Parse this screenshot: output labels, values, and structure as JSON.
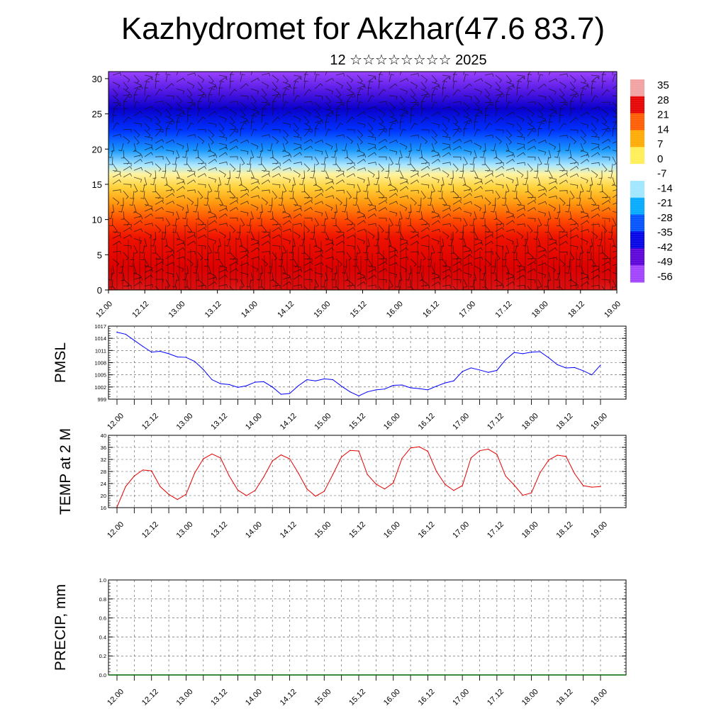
{
  "title": "Kazhydromet for Akzhar(47.6 83.7)",
  "subtitle": "12 ☆☆☆☆☆☆☆☆ 2025",
  "chart_data": [
    {
      "type": "heatmap",
      "panel": "wind-temperature-cross-section",
      "ylim": [
        0,
        31
      ],
      "y_ticks": [
        "0",
        "5",
        "10",
        "15",
        "20",
        "25",
        "30"
      ],
      "x_ticks": [
        "12.00",
        "12.12",
        "13.00",
        "13.12",
        "14.00",
        "14.12",
        "15.00",
        "15.12",
        "16.00",
        "16.12",
        "17.00",
        "17.12",
        "18.00",
        "18.12",
        "19.00"
      ],
      "colorbar_labels": [
        "35",
        "28",
        "21",
        "14",
        "7",
        "0",
        "-7",
        "-14",
        "-21",
        "-28",
        "-35",
        "-42",
        "-49",
        "-56"
      ],
      "colorbar_colors": [
        "#f2a0a0",
        "#e60000",
        "#ff5a00",
        "#ffaa00",
        "#ffee55",
        "#ffffff",
        "#9fe6ff",
        "#00aaff",
        "#0050ff",
        "#0000e6",
        "#5a00d8",
        "#a040ff"
      ],
      "grid": false
    },
    {
      "type": "line",
      "ylabel": "PMSL",
      "ylim": [
        999,
        1017
      ],
      "y_ticks": [
        "999",
        "1002",
        "1005",
        "1008",
        "1011",
        "1014",
        "1017"
      ],
      "x_ticks": [
        "12.00",
        "12.12",
        "13.00",
        "13.12",
        "14.00",
        "14.12",
        "15.00",
        "15.12",
        "16.00",
        "16.12",
        "17.00",
        "17.12",
        "18.00",
        "18.12",
        "19.00"
      ],
      "color": "#0000ff",
      "grid": true,
      "values": [
        1015.5,
        1015.0,
        1013.5,
        1012.0,
        1010.6,
        1010.8,
        1010.2,
        1009.4,
        1009.3,
        1008.3,
        1006.3,
        1003.8,
        1002.8,
        1002.6,
        1001.9,
        1002.3,
        1003.2,
        1003.3,
        1002.0,
        1000.2,
        1000.4,
        1002.3,
        1003.8,
        1003.5,
        1004.0,
        1003.8,
        1002.2,
        1000.8,
        999.8,
        1000.8,
        1001.3,
        1001.5,
        1002.4,
        1002.5,
        1001.8,
        1001.6,
        1001.3,
        1002.2,
        1003.0,
        1003.5,
        1005.8,
        1006.7,
        1006.2,
        1005.6,
        1006.1,
        1008.7,
        1010.5,
        1010.2,
        1010.6,
        1010.7,
        1009.2,
        1007.5,
        1006.7,
        1006.8,
        1006.0,
        1005.0,
        1007.4
      ]
    },
    {
      "type": "line",
      "ylabel": "TEMP at 2 M",
      "ylim": [
        16,
        40
      ],
      "y_ticks": [
        "16",
        "20",
        "24",
        "28",
        "32",
        "36",
        "40"
      ],
      "x_ticks": [
        "12.00",
        "12.12",
        "13.00",
        "13.12",
        "14.00",
        "14.12",
        "15.00",
        "15.12",
        "16.00",
        "16.12",
        "17.00",
        "17.12",
        "18.00",
        "18.12",
        "19.00"
      ],
      "color": "#e60000",
      "grid": true,
      "values": [
        16.2,
        23.0,
        26.5,
        28.5,
        28.2,
        23.0,
        20.4,
        18.7,
        20.4,
        27.5,
        32.2,
        33.8,
        32.5,
        26.5,
        21.8,
        20.0,
        21.7,
        26.2,
        31.5,
        33.5,
        32.2,
        27.5,
        22.2,
        19.8,
        21.4,
        27.0,
        32.8,
        35.0,
        34.8,
        27.0,
        23.8,
        22.2,
        24.2,
        32.3,
        35.8,
        36.2,
        34.7,
        28.0,
        23.7,
        21.7,
        23.3,
        32.5,
        34.9,
        35.4,
        33.7,
        26.5,
        23.5,
        20.1,
        20.9,
        27.6,
        31.8,
        33.4,
        33.0,
        27.3,
        23.3,
        22.8,
        23.0
      ]
    },
    {
      "type": "bar",
      "ylabel": "PRECIP, mm",
      "ylim": [
        0,
        1
      ],
      "y_ticks": [
        "0.0",
        "0.2",
        "0.4",
        "0.6",
        "0.8",
        "1.0"
      ],
      "x_ticks": [
        "12.00",
        "12.12",
        "13.00",
        "13.12",
        "14.00",
        "14.12",
        "15.00",
        "15.12",
        "16.00",
        "16.12",
        "17.00",
        "17.12",
        "18.00",
        "18.12",
        "19.00"
      ],
      "color": "#006400",
      "grid": true,
      "values": [
        0,
        0,
        0,
        0,
        0,
        0,
        0,
        0,
        0,
        0,
        0,
        0,
        0,
        0,
        0,
        0,
        0,
        0,
        0,
        0,
        0,
        0,
        0,
        0,
        0,
        0,
        0,
        0
      ]
    }
  ]
}
